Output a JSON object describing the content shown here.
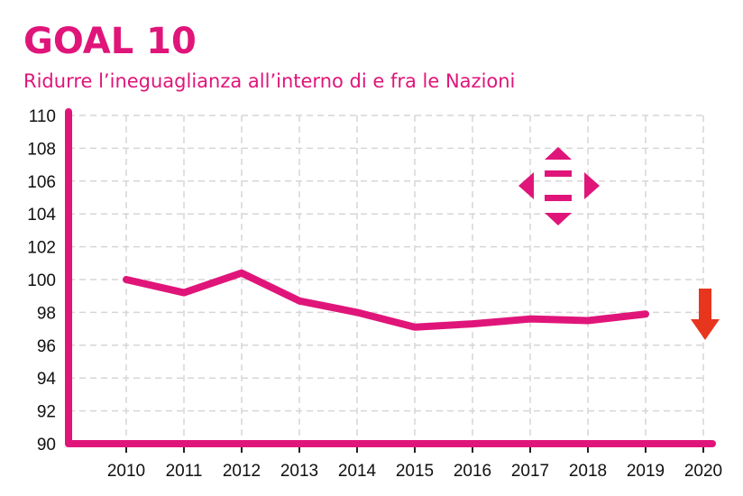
{
  "header": {
    "title": "GOAL 10",
    "subtitle": "Ridurre l’ineguaglianza all’interno di e fra le Nazioni"
  },
  "colors": {
    "accent": "#e0157a",
    "grid": "#d6d6d6",
    "trend_arrow": "#e8351e"
  },
  "icons": {
    "goal_logo": "goal-10-equality-icon",
    "trend": "trend-down-arrow-icon"
  },
  "chart_data": {
    "type": "line",
    "title": "GOAL 10",
    "subtitle": "Ridurre l’ineguaglianza all’interno di e fra le Nazioni",
    "xlabel": "",
    "ylabel": "",
    "categories": [
      "2010",
      "2011",
      "2012",
      "2013",
      "2014",
      "2015",
      "2016",
      "2017",
      "2018",
      "2019",
      "2020"
    ],
    "series": [
      {
        "values": [
          100.0,
          99.2,
          100.4,
          98.7,
          98.0,
          97.1,
          97.3,
          97.6,
          97.5,
          97.9,
          null
        ]
      }
    ],
    "ylim": [
      90,
      110
    ],
    "yticks": [
      90,
      92,
      94,
      96,
      98,
      100,
      102,
      104,
      106,
      108,
      110
    ],
    "grid": true,
    "grid_style": "dashed",
    "legend": "none",
    "trend_indicator": "down"
  }
}
